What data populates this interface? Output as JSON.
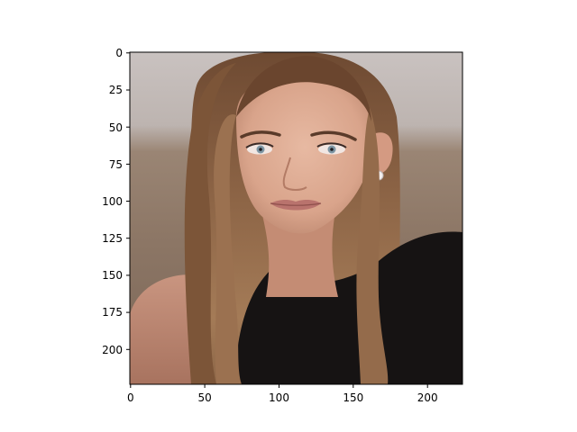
{
  "figure": {
    "background": "#ffffff",
    "axes_color": "#000000"
  },
  "image": {
    "subject": "portrait photo of a woman with long straight light-brown hair, black top, small stud earring",
    "extent_x": [
      0,
      224
    ],
    "extent_y": [
      0,
      224
    ],
    "y_axis_inverted": true
  },
  "axes": {
    "x_ticks": [
      0,
      50,
      100,
      150,
      200
    ],
    "x_tick_labels": [
      "0",
      "50",
      "100",
      "150",
      "200"
    ],
    "y_ticks": [
      0,
      25,
      50,
      75,
      100,
      125,
      150,
      175,
      200
    ],
    "y_tick_labels": [
      "0",
      "25",
      "50",
      "75",
      "100",
      "125",
      "150",
      "175",
      "200"
    ]
  }
}
